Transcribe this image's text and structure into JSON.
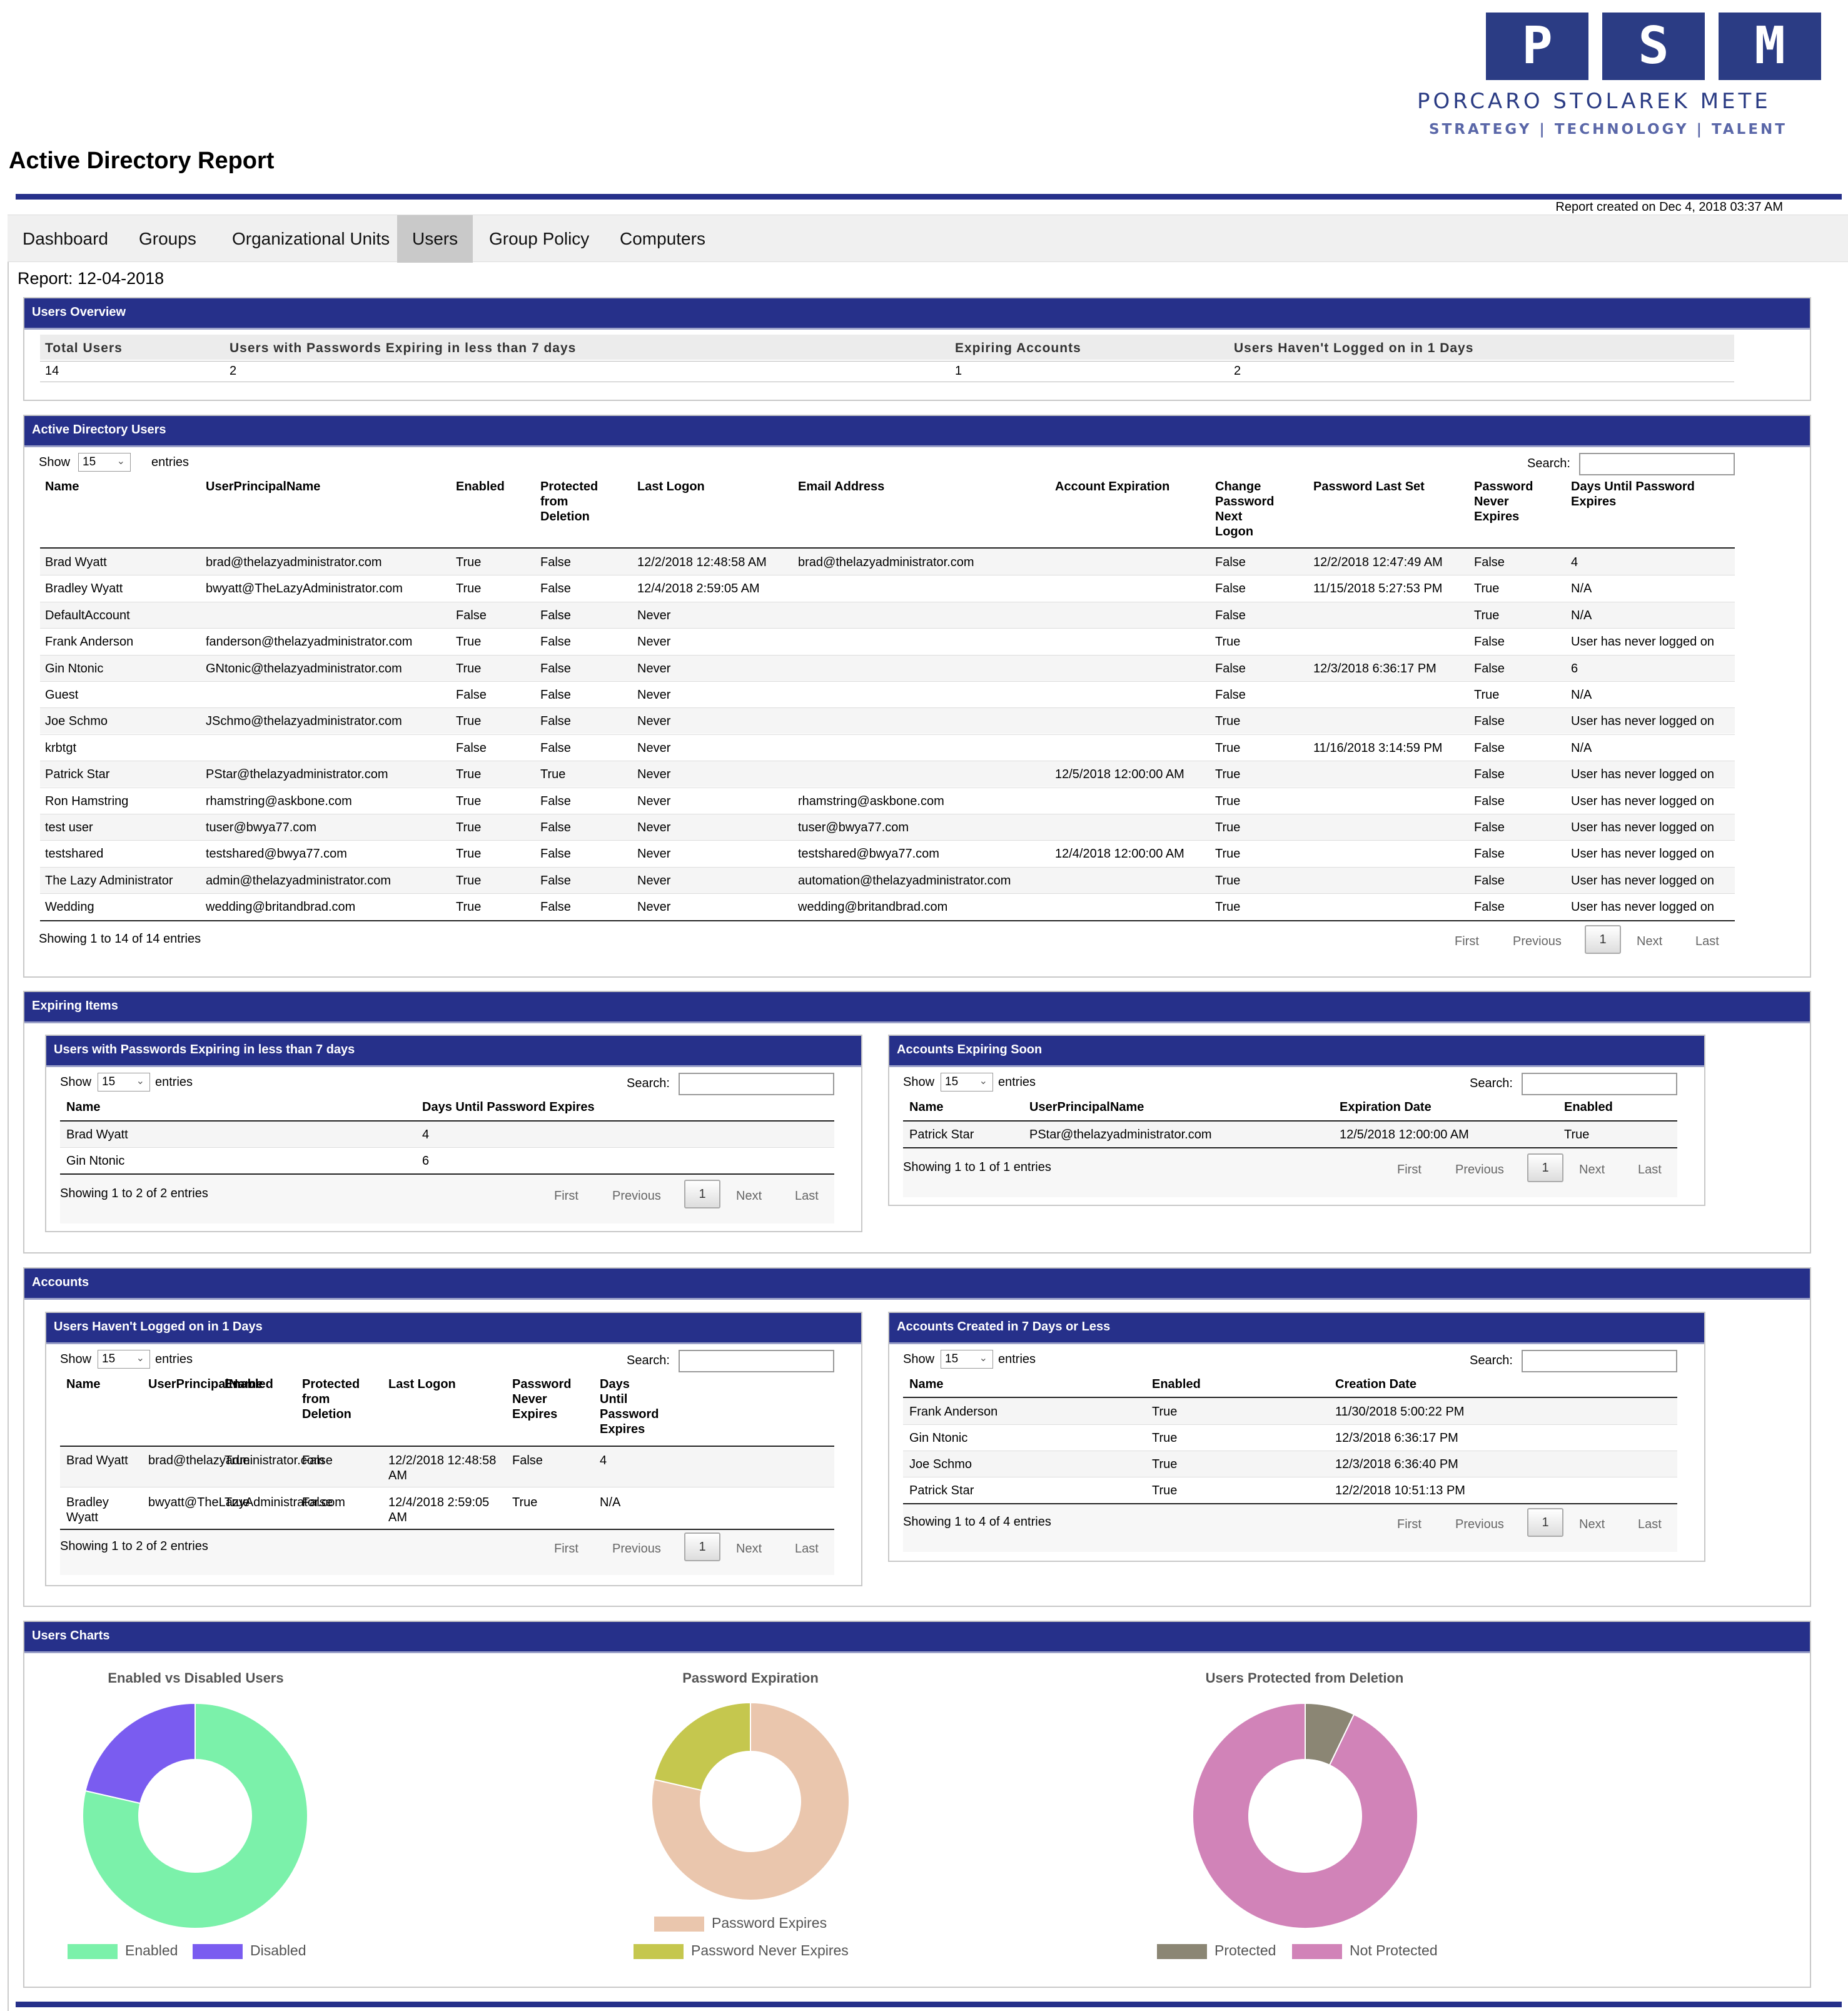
{
  "logo": {
    "letters": [
      "P",
      "S",
      "M"
    ],
    "name": "PORCARO STOLAREK METE",
    "tagline": "STRATEGY | TECHNOLOGY | TALENT",
    "color": "#2b3c84"
  },
  "header": {
    "title": "Active Directory Report",
    "created": "Report created on Dec 4, 2018 03:37 AM",
    "accent": "#26308a"
  },
  "nav": {
    "items": [
      "Dashboard",
      "Groups",
      "Organizational Units",
      "Users",
      "Group Policy",
      "Computers"
    ],
    "active": "Users"
  },
  "report_date": "Report: 12-04-2018",
  "users_overview": {
    "title": "Users Overview",
    "headers": [
      "Total Users",
      "Users with Passwords Expiring in less than 7 days",
      "Expiring Accounts",
      "Users Haven't Logged on in 1 Days"
    ],
    "values": [
      "14",
      "2",
      "1",
      "2"
    ]
  },
  "table_controls": {
    "show": "Show",
    "entries": "entries",
    "page_size": "15",
    "search": "Search:",
    "first": "First",
    "previous": "Previous",
    "page": "1",
    "next": "Next",
    "last": "Last"
  },
  "ad_users": {
    "title": "Active Directory Users",
    "headers": [
      "Name",
      "UserPrincipalName",
      "Enabled",
      "Protected from Deletion",
      "Last Logon",
      "Email Address",
      "Account Expiration",
      "Change Password Next Logon",
      "Password Last Set",
      "Password Never Expires",
      "Days Until Password Expires"
    ],
    "header_lines": [
      [
        "Name"
      ],
      [
        "UserPrincipalName"
      ],
      [
        "Enabled"
      ],
      [
        "Protected",
        "from",
        "Deletion"
      ],
      [
        "Last Logon"
      ],
      [
        "Email Address"
      ],
      [
        "Account Expiration"
      ],
      [
        "Change",
        "Password",
        "Next",
        "Logon"
      ],
      [
        "Password Last Set"
      ],
      [
        "Password",
        "Never",
        "Expires"
      ],
      [
        "Days Until Password",
        "Expires"
      ]
    ],
    "rows": [
      [
        "Brad Wyatt",
        "brad@thelazyadministrator.com",
        "True",
        "False",
        "12/2/2018 12:48:58 AM",
        "brad@thelazyadministrator.com",
        "",
        "False",
        "12/2/2018 12:47:49 AM",
        "False",
        "4"
      ],
      [
        "Bradley Wyatt",
        "bwyatt@TheLazyAdministrator.com",
        "True",
        "False",
        "12/4/2018 2:59:05 AM",
        "",
        "",
        "False",
        "11/15/2018 5:27:53 PM",
        "True",
        "N/A"
      ],
      [
        "DefaultAccount",
        "",
        "False",
        "False",
        "Never",
        "",
        "",
        "False",
        "",
        "True",
        "N/A"
      ],
      [
        "Frank Anderson",
        "fanderson@thelazyadministrator.com",
        "True",
        "False",
        "Never",
        "",
        "",
        "True",
        "",
        "False",
        "User has never logged on"
      ],
      [
        "Gin Ntonic",
        "GNtonic@thelazyadministrator.com",
        "True",
        "False",
        "Never",
        "",
        "",
        "False",
        "12/3/2018 6:36:17 PM",
        "False",
        "6"
      ],
      [
        "Guest",
        "",
        "False",
        "False",
        "Never",
        "",
        "",
        "False",
        "",
        "True",
        "N/A"
      ],
      [
        "Joe Schmo",
        "JSchmo@thelazyadministrator.com",
        "True",
        "False",
        "Never",
        "",
        "",
        "True",
        "",
        "False",
        "User has never logged on"
      ],
      [
        "krbtgt",
        "",
        "False",
        "False",
        "Never",
        "",
        "",
        "True",
        "11/16/2018 3:14:59 PM",
        "False",
        "N/A"
      ],
      [
        "Patrick Star",
        "PStar@thelazyadministrator.com",
        "True",
        "True",
        "Never",
        "",
        "12/5/2018 12:00:00 AM",
        "True",
        "",
        "False",
        "User has never logged on"
      ],
      [
        "Ron Hamstring",
        "rhamstring@askbone.com",
        "True",
        "False",
        "Never",
        "rhamstring@askbone.com",
        "",
        "True",
        "",
        "False",
        "User has never logged on"
      ],
      [
        "test user",
        "tuser@bwya77.com",
        "True",
        "False",
        "Never",
        "tuser@bwya77.com",
        "",
        "True",
        "",
        "False",
        "User has never logged on"
      ],
      [
        "testshared",
        "testshared@bwya77.com",
        "True",
        "False",
        "Never",
        "testshared@bwya77.com",
        "12/4/2018 12:00:00 AM",
        "True",
        "",
        "False",
        "User has never logged on"
      ],
      [
        "The Lazy Administrator",
        "admin@thelazyadministrator.com",
        "True",
        "False",
        "Never",
        "automation@thelazyadministrator.com",
        "",
        "True",
        "",
        "False",
        "User has never logged on"
      ],
      [
        "Wedding",
        "wedding@britandbrad.com",
        "True",
        "False",
        "Never",
        "wedding@britandbrad.com",
        "",
        "True",
        "",
        "False",
        "User has never logged on"
      ]
    ],
    "info": "Showing 1 to 14 of 14 entries"
  },
  "expiring_items": {
    "title": "Expiring Items",
    "pw_expiring": {
      "title": "Users with Passwords Expiring in less than 7 days",
      "headers": [
        "Name",
        "Days Until Password Expires"
      ],
      "rows": [
        [
          "Brad Wyatt",
          "4"
        ],
        [
          "Gin Ntonic",
          "6"
        ]
      ],
      "info": "Showing 1 to 2 of 2 entries"
    },
    "accounts_expiring": {
      "title": "Accounts Expiring Soon",
      "headers": [
        "Name",
        "UserPrincipalName",
        "Expiration Date",
        "Enabled"
      ],
      "rows": [
        [
          "Patrick Star",
          "PStar@thelazyadministrator.com",
          "12/5/2018 12:00:00 AM",
          "True"
        ]
      ],
      "info": "Showing 1 to 1 of 1 entries"
    }
  },
  "accounts": {
    "title": "Accounts",
    "not_logged": {
      "title": "Users Haven't Logged on in 1 Days",
      "header_lines": [
        [
          "Name"
        ],
        [
          "UserPrincipalName"
        ],
        [
          "Enabled"
        ],
        [
          "Protected",
          "from",
          "Deletion"
        ],
        [
          "Last Logon"
        ],
        [
          "Password",
          "Never",
          "Expires"
        ],
        [
          "Days",
          "Until",
          "Password",
          "Expires"
        ]
      ],
      "rows": [
        [
          [
            "Brad Wyatt"
          ],
          [
            "brad@thelazyadministrator.com"
          ],
          [
            "True"
          ],
          [
            "False"
          ],
          [
            "12/2/2018 12:48:58",
            "AM"
          ],
          [
            "False"
          ],
          [
            "4"
          ]
        ],
        [
          [
            "Bradley",
            "Wyatt"
          ],
          [
            "bwyatt@TheLazyAdministrator.com"
          ],
          [
            "True"
          ],
          [
            "False"
          ],
          [
            "12/4/2018 2:59:05",
            "AM"
          ],
          [
            "True"
          ],
          [
            "N/A"
          ]
        ]
      ],
      "info": "Showing 1 to 2 of 2 entries"
    },
    "created_recent": {
      "title": "Accounts Created in 7 Days or Less",
      "headers": [
        "Name",
        "Enabled",
        "Creation Date"
      ],
      "rows": [
        [
          "Frank Anderson",
          "True",
          "11/30/2018 5:00:22 PM"
        ],
        [
          "Gin Ntonic",
          "True",
          "12/3/2018 6:36:17 PM"
        ],
        [
          "Joe Schmo",
          "True",
          "12/3/2018 6:36:40 PM"
        ],
        [
          "Patrick Star",
          "True",
          "12/2/2018 10:51:13 PM"
        ]
      ],
      "info": "Showing 1 to 4 of 4 entries"
    }
  },
  "users_charts": {
    "title": "Users Charts"
  },
  "chart_data": [
    {
      "type": "pie",
      "title": "Enabled vs Disabled Users",
      "categories": [
        "Enabled",
        "Disabled"
      ],
      "values": [
        11,
        3
      ],
      "colors": [
        "#7bf1aa",
        "#7a5cf0"
      ],
      "legend": "bottom"
    },
    {
      "type": "pie",
      "title": "Password Expiration",
      "categories": [
        "Password Expires",
        "Password Never Expires"
      ],
      "values": [
        11,
        3
      ],
      "colors": [
        "#eac6ad",
        "#c5c74e"
      ],
      "legend": "bottom"
    },
    {
      "type": "pie",
      "title": "Users Protected from Deletion",
      "categories": [
        "Protected",
        "Not Protected"
      ],
      "values": [
        1,
        13
      ],
      "colors": [
        "#8b8674",
        "#d183b8"
      ],
      "legend": "bottom"
    }
  ]
}
